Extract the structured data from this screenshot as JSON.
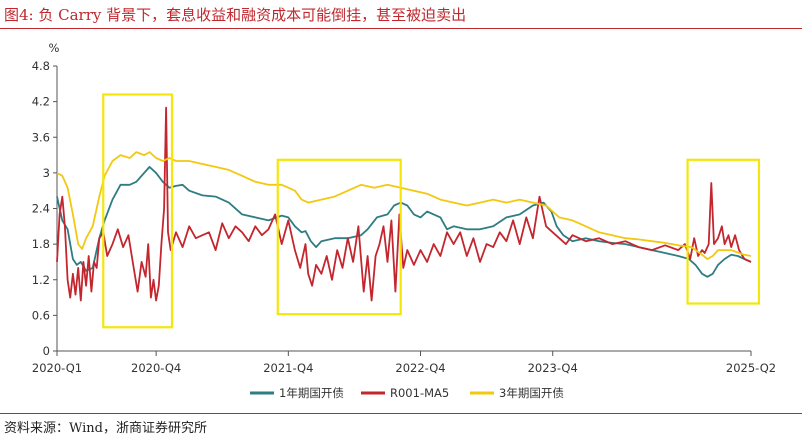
{
  "figure": {
    "title": "图4:  负 Carry 背景下，套息收益和融资成本可能倒挂，甚至被迫卖出",
    "source": "资料来源：Wind，浙商证券研究所"
  },
  "chart_data": {
    "type": "line",
    "title": "负 Carry 背景下，套息收益和融资成本可能倒挂，甚至被迫卖出",
    "ylabel": "%",
    "xlabel": "",
    "ylim": [
      0,
      4.8
    ],
    "yticks": [
      "0",
      "0.6",
      "1.2",
      "1.8",
      "2.4",
      "3",
      "3.6",
      "4.2",
      "4.8"
    ],
    "x_range": [
      2020.0,
      2025.25
    ],
    "x_ticks": [
      {
        "t": 2020.0,
        "label": "2020-Q1"
      },
      {
        "t": 2020.75,
        "label": "2020-Q4"
      },
      {
        "t": 2021.75,
        "label": "2021-Q4"
      },
      {
        "t": 2022.75,
        "label": "2022-Q4"
      },
      {
        "t": 2023.75,
        "label": "2023-Q4"
      },
      {
        "t": 2025.25,
        "label": "2025-Q2"
      }
    ],
    "highlight_periods": [
      {
        "start": 2020.35,
        "end": 2020.87,
        "ymin": 0.4,
        "ymax": 4.32
      },
      {
        "start": 2021.67,
        "end": 2022.6,
        "ymin": 0.62,
        "ymax": 3.22
      },
      {
        "start": 2024.77,
        "end": 2025.31,
        "ymin": 0.8,
        "ymax": 3.22
      }
    ],
    "series": [
      {
        "name": "1年期国开债",
        "color": "#2e7d82",
        "points": [
          [
            2020.0,
            2.6
          ],
          [
            2020.04,
            2.2
          ],
          [
            2020.08,
            2.05
          ],
          [
            2020.12,
            1.55
          ],
          [
            2020.15,
            1.45
          ],
          [
            2020.18,
            1.5
          ],
          [
            2020.22,
            1.35
          ],
          [
            2020.27,
            1.4
          ],
          [
            2020.32,
            1.9
          ],
          [
            2020.36,
            2.2
          ],
          [
            2020.42,
            2.55
          ],
          [
            2020.48,
            2.8
          ],
          [
            2020.55,
            2.8
          ],
          [
            2020.6,
            2.85
          ],
          [
            2020.66,
            3.0
          ],
          [
            2020.7,
            3.1
          ],
          [
            2020.75,
            3.0
          ],
          [
            2020.8,
            2.85
          ],
          [
            2020.85,
            2.75
          ],
          [
            2020.9,
            2.78
          ],
          [
            2020.95,
            2.8
          ],
          [
            2021.0,
            2.7
          ],
          [
            2021.1,
            2.62
          ],
          [
            2021.2,
            2.6
          ],
          [
            2021.3,
            2.5
          ],
          [
            2021.4,
            2.3
          ],
          [
            2021.5,
            2.25
          ],
          [
            2021.6,
            2.2
          ],
          [
            2021.7,
            2.28
          ],
          [
            2021.75,
            2.25
          ],
          [
            2021.8,
            2.1
          ],
          [
            2021.85,
            2.0
          ],
          [
            2021.88,
            2.02
          ],
          [
            2021.92,
            1.85
          ],
          [
            2021.96,
            1.75
          ],
          [
            2022.0,
            1.85
          ],
          [
            2022.1,
            1.9
          ],
          [
            2022.2,
            1.9
          ],
          [
            2022.3,
            1.95
          ],
          [
            2022.35,
            2.05
          ],
          [
            2022.42,
            2.25
          ],
          [
            2022.5,
            2.3
          ],
          [
            2022.55,
            2.45
          ],
          [
            2022.6,
            2.5
          ],
          [
            2022.65,
            2.45
          ],
          [
            2022.7,
            2.3
          ],
          [
            2022.75,
            2.25
          ],
          [
            2022.8,
            2.35
          ],
          [
            2022.85,
            2.3
          ],
          [
            2022.9,
            2.25
          ],
          [
            2022.95,
            2.05
          ],
          [
            2023.0,
            2.1
          ],
          [
            2023.1,
            2.05
          ],
          [
            2023.2,
            2.05
          ],
          [
            2023.3,
            2.1
          ],
          [
            2023.4,
            2.25
          ],
          [
            2023.5,
            2.3
          ],
          [
            2023.6,
            2.45
          ],
          [
            2023.68,
            2.5
          ],
          [
            2023.74,
            2.35
          ],
          [
            2023.78,
            2.1
          ],
          [
            2023.83,
            1.95
          ],
          [
            2023.9,
            1.85
          ],
          [
            2024.0,
            1.9
          ],
          [
            2024.1,
            1.85
          ],
          [
            2024.2,
            1.82
          ],
          [
            2024.3,
            1.8
          ],
          [
            2024.4,
            1.75
          ],
          [
            2024.5,
            1.7
          ],
          [
            2024.6,
            1.65
          ],
          [
            2024.7,
            1.6
          ],
          [
            2024.78,
            1.55
          ],
          [
            2024.83,
            1.45
          ],
          [
            2024.88,
            1.3
          ],
          [
            2024.92,
            1.25
          ],
          [
            2024.96,
            1.3
          ],
          [
            2025.0,
            1.45
          ],
          [
            2025.05,
            1.55
          ],
          [
            2025.1,
            1.62
          ],
          [
            2025.15,
            1.6
          ],
          [
            2025.2,
            1.55
          ],
          [
            2025.25,
            1.5
          ]
        ]
      },
      {
        "name": "R001-MA5",
        "color": "#c4262e",
        "points": [
          [
            2020.0,
            1.5
          ],
          [
            2020.02,
            2.3
          ],
          [
            2020.04,
            2.6
          ],
          [
            2020.06,
            2.1
          ],
          [
            2020.08,
            1.2
          ],
          [
            2020.1,
            0.9
          ],
          [
            2020.12,
            1.3
          ],
          [
            2020.14,
            0.95
          ],
          [
            2020.16,
            1.4
          ],
          [
            2020.18,
            0.85
          ],
          [
            2020.2,
            1.5
          ],
          [
            2020.22,
            1.1
          ],
          [
            2020.24,
            1.6
          ],
          [
            2020.26,
            1.0
          ],
          [
            2020.28,
            1.5
          ],
          [
            2020.3,
            1.4
          ],
          [
            2020.32,
            1.9
          ],
          [
            2020.35,
            2.0
          ],
          [
            2020.38,
            1.6
          ],
          [
            2020.42,
            1.8
          ],
          [
            2020.46,
            2.05
          ],
          [
            2020.5,
            1.75
          ],
          [
            2020.54,
            1.95
          ],
          [
            2020.58,
            1.4
          ],
          [
            2020.61,
            1.0
          ],
          [
            2020.64,
            1.5
          ],
          [
            2020.67,
            1.25
          ],
          [
            2020.69,
            1.8
          ],
          [
            2020.71,
            0.9
          ],
          [
            2020.73,
            1.2
          ],
          [
            2020.75,
            0.85
          ],
          [
            2020.77,
            1.1
          ],
          [
            2020.79,
            1.8
          ],
          [
            2020.81,
            2.4
          ],
          [
            2020.825,
            4.1
          ],
          [
            2020.84,
            2.0
          ],
          [
            2020.86,
            1.7
          ],
          [
            2020.9,
            2.0
          ],
          [
            2020.95,
            1.75
          ],
          [
            2021.0,
            2.1
          ],
          [
            2021.05,
            1.9
          ],
          [
            2021.1,
            1.95
          ],
          [
            2021.15,
            2.0
          ],
          [
            2021.2,
            1.7
          ],
          [
            2021.25,
            2.15
          ],
          [
            2021.3,
            1.9
          ],
          [
            2021.35,
            2.1
          ],
          [
            2021.4,
            2.0
          ],
          [
            2021.45,
            1.85
          ],
          [
            2021.5,
            2.1
          ],
          [
            2021.55,
            1.95
          ],
          [
            2021.6,
            2.05
          ],
          [
            2021.65,
            2.3
          ],
          [
            2021.7,
            1.8
          ],
          [
            2021.75,
            2.2
          ],
          [
            2021.8,
            1.7
          ],
          [
            2021.84,
            1.4
          ],
          [
            2021.88,
            1.8
          ],
          [
            2021.9,
            1.3
          ],
          [
            2021.93,
            1.1
          ],
          [
            2021.96,
            1.45
          ],
          [
            2022.0,
            1.3
          ],
          [
            2022.04,
            1.6
          ],
          [
            2022.08,
            1.2
          ],
          [
            2022.12,
            1.7
          ],
          [
            2022.16,
            1.4
          ],
          [
            2022.2,
            1.9
          ],
          [
            2022.24,
            1.5
          ],
          [
            2022.28,
            2.1
          ],
          [
            2022.32,
            1.0
          ],
          [
            2022.35,
            1.6
          ],
          [
            2022.38,
            0.85
          ],
          [
            2022.41,
            1.6
          ],
          [
            2022.44,
            1.8
          ],
          [
            2022.47,
            2.1
          ],
          [
            2022.5,
            1.5
          ],
          [
            2022.53,
            2.2
          ],
          [
            2022.56,
            1.0
          ],
          [
            2022.59,
            2.3
          ],
          [
            2022.62,
            1.4
          ],
          [
            2022.65,
            1.7
          ],
          [
            2022.7,
            1.45
          ],
          [
            2022.75,
            1.7
          ],
          [
            2022.8,
            1.5
          ],
          [
            2022.85,
            1.8
          ],
          [
            2022.9,
            1.6
          ],
          [
            2022.95,
            2.0
          ],
          [
            2023.0,
            1.8
          ],
          [
            2023.05,
            2.0
          ],
          [
            2023.1,
            1.6
          ],
          [
            2023.15,
            1.9
          ],
          [
            2023.2,
            1.5
          ],
          [
            2023.25,
            1.8
          ],
          [
            2023.3,
            1.75
          ],
          [
            2023.35,
            2.0
          ],
          [
            2023.4,
            1.85
          ],
          [
            2023.45,
            2.2
          ],
          [
            2023.5,
            1.8
          ],
          [
            2023.55,
            2.25
          ],
          [
            2023.6,
            1.9
          ],
          [
            2023.65,
            2.6
          ],
          [
            2023.7,
            2.1
          ],
          [
            2023.75,
            2.0
          ],
          [
            2023.8,
            1.9
          ],
          [
            2023.85,
            1.8
          ],
          [
            2023.9,
            1.95
          ],
          [
            2024.0,
            1.85
          ],
          [
            2024.1,
            1.9
          ],
          [
            2024.2,
            1.8
          ],
          [
            2024.3,
            1.85
          ],
          [
            2024.4,
            1.75
          ],
          [
            2024.5,
            1.7
          ],
          [
            2024.6,
            1.78
          ],
          [
            2024.7,
            1.7
          ],
          [
            2024.75,
            1.8
          ],
          [
            2024.79,
            1.55
          ],
          [
            2024.82,
            1.9
          ],
          [
            2024.85,
            1.6
          ],
          [
            2024.88,
            1.7
          ],
          [
            2024.9,
            1.65
          ],
          [
            2024.93,
            1.8
          ],
          [
            2024.95,
            2.83
          ],
          [
            2024.97,
            1.8
          ],
          [
            2025.0,
            1.9
          ],
          [
            2025.03,
            2.1
          ],
          [
            2025.05,
            1.8
          ],
          [
            2025.08,
            1.95
          ],
          [
            2025.1,
            1.75
          ],
          [
            2025.13,
            1.95
          ],
          [
            2025.16,
            1.7
          ],
          [
            2025.2,
            1.55
          ],
          [
            2025.25,
            1.5
          ]
        ]
      },
      {
        "name": "3年期国开债",
        "color": "#f2c811",
        "points": [
          [
            2020.0,
            3.0
          ],
          [
            2020.04,
            2.95
          ],
          [
            2020.08,
            2.75
          ],
          [
            2020.12,
            2.3
          ],
          [
            2020.16,
            1.8
          ],
          [
            2020.19,
            1.72
          ],
          [
            2020.22,
            1.9
          ],
          [
            2020.27,
            2.1
          ],
          [
            2020.32,
            2.6
          ],
          [
            2020.36,
            2.95
          ],
          [
            2020.42,
            3.2
          ],
          [
            2020.48,
            3.3
          ],
          [
            2020.55,
            3.25
          ],
          [
            2020.6,
            3.35
          ],
          [
            2020.66,
            3.3
          ],
          [
            2020.7,
            3.35
          ],
          [
            2020.75,
            3.25
          ],
          [
            2020.8,
            3.2
          ],
          [
            2020.85,
            3.25
          ],
          [
            2020.9,
            3.2
          ],
          [
            2021.0,
            3.2
          ],
          [
            2021.1,
            3.15
          ],
          [
            2021.2,
            3.1
          ],
          [
            2021.3,
            3.05
          ],
          [
            2021.4,
            2.95
          ],
          [
            2021.5,
            2.85
          ],
          [
            2021.6,
            2.8
          ],
          [
            2021.7,
            2.8
          ],
          [
            2021.75,
            2.75
          ],
          [
            2021.8,
            2.7
          ],
          [
            2021.85,
            2.55
          ],
          [
            2021.9,
            2.5
          ],
          [
            2022.0,
            2.55
          ],
          [
            2022.1,
            2.6
          ],
          [
            2022.2,
            2.7
          ],
          [
            2022.3,
            2.8
          ],
          [
            2022.4,
            2.75
          ],
          [
            2022.5,
            2.8
          ],
          [
            2022.6,
            2.75
          ],
          [
            2022.7,
            2.7
          ],
          [
            2022.8,
            2.65
          ],
          [
            2022.9,
            2.55
          ],
          [
            2023.0,
            2.5
          ],
          [
            2023.1,
            2.45
          ],
          [
            2023.2,
            2.5
          ],
          [
            2023.3,
            2.55
          ],
          [
            2023.4,
            2.5
          ],
          [
            2023.5,
            2.55
          ],
          [
            2023.6,
            2.5
          ],
          [
            2023.7,
            2.45
          ],
          [
            2023.75,
            2.35
          ],
          [
            2023.8,
            2.25
          ],
          [
            2023.9,
            2.2
          ],
          [
            2024.0,
            2.1
          ],
          [
            2024.1,
            2.0
          ],
          [
            2024.2,
            1.95
          ],
          [
            2024.3,
            1.9
          ],
          [
            2024.4,
            1.88
          ],
          [
            2024.5,
            1.85
          ],
          [
            2024.6,
            1.82
          ],
          [
            2024.7,
            1.78
          ],
          [
            2024.8,
            1.75
          ],
          [
            2024.88,
            1.62
          ],
          [
            2024.92,
            1.55
          ],
          [
            2024.96,
            1.6
          ],
          [
            2025.0,
            1.7
          ],
          [
            2025.1,
            1.7
          ],
          [
            2025.2,
            1.62
          ],
          [
            2025.25,
            1.6
          ]
        ]
      }
    ]
  }
}
